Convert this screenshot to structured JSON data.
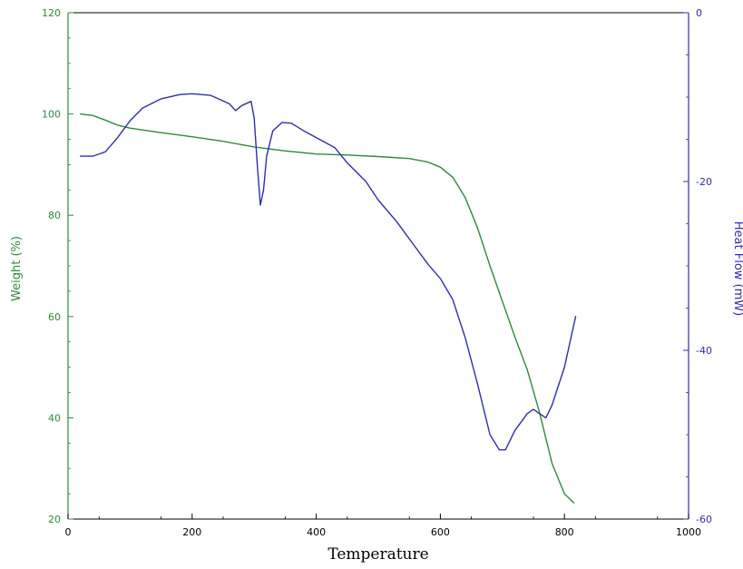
{
  "chart_data": {
    "type": "line",
    "title": "",
    "xlabel": "Temperature",
    "ylabel_left": "Weight (%)",
    "ylabel_right": "Heat Flow (mW)",
    "xlim": [
      0,
      1000
    ],
    "ylim_left": [
      20,
      120
    ],
    "ylim_right": [
      -60,
      0
    ],
    "x_ticks": [
      "0",
      "200",
      "400",
      "600",
      "800",
      "1000"
    ],
    "y_left_ticks": [
      "20",
      "40",
      "60",
      "80",
      "100",
      "120"
    ],
    "y_right_ticks": [
      "-60",
      "-40",
      "-20",
      "0"
    ],
    "grid": false,
    "legend": "none",
    "series": [
      {
        "axis": "left",
        "color": "#2e8b3a",
        "points": [
          [
            20,
            100
          ],
          [
            40,
            99.7
          ],
          [
            60,
            98.8
          ],
          [
            80,
            97.8
          ],
          [
            100,
            97.2
          ],
          [
            150,
            96.3
          ],
          [
            200,
            95.5
          ],
          [
            250,
            94.6
          ],
          [
            300,
            93.5
          ],
          [
            350,
            92.7
          ],
          [
            400,
            92.1
          ],
          [
            450,
            91.9
          ],
          [
            500,
            91.6
          ],
          [
            550,
            91.2
          ],
          [
            580,
            90.5
          ],
          [
            600,
            89.5
          ],
          [
            620,
            87.5
          ],
          [
            640,
            83.5
          ],
          [
            660,
            77.5
          ],
          [
            680,
            70
          ],
          [
            700,
            63
          ],
          [
            720,
            56
          ],
          [
            740,
            49.5
          ],
          [
            760,
            41
          ],
          [
            780,
            31
          ],
          [
            800,
            25
          ],
          [
            815,
            23.2
          ]
        ]
      },
      {
        "axis": "right",
        "color": "#2e2eb0",
        "points": [
          [
            20,
            -17
          ],
          [
            40,
            -17
          ],
          [
            60,
            -16.5
          ],
          [
            80,
            -14.8
          ],
          [
            100,
            -12.8
          ],
          [
            120,
            -11.3
          ],
          [
            150,
            -10.2
          ],
          [
            180,
            -9.7
          ],
          [
            200,
            -9.6
          ],
          [
            230,
            -9.8
          ],
          [
            260,
            -10.8
          ],
          [
            270,
            -11.6
          ],
          [
            280,
            -11
          ],
          [
            295,
            -10.5
          ],
          [
            300,
            -12.5
          ],
          [
            305,
            -18
          ],
          [
            310,
            -22.8
          ],
          [
            315,
            -21
          ],
          [
            320,
            -17
          ],
          [
            330,
            -14
          ],
          [
            345,
            -13
          ],
          [
            360,
            -13.1
          ],
          [
            380,
            -14
          ],
          [
            400,
            -14.8
          ],
          [
            430,
            -16
          ],
          [
            450,
            -17.8
          ],
          [
            480,
            -20
          ],
          [
            500,
            -22.2
          ],
          [
            530,
            -24.8
          ],
          [
            560,
            -27.8
          ],
          [
            580,
            -29.8
          ],
          [
            600,
            -31.5
          ],
          [
            620,
            -34
          ],
          [
            640,
            -38.5
          ],
          [
            660,
            -44
          ],
          [
            680,
            -50
          ],
          [
            695,
            -51.8
          ],
          [
            705,
            -51.8
          ],
          [
            720,
            -49.5
          ],
          [
            740,
            -47.5
          ],
          [
            750,
            -47
          ],
          [
            760,
            -47.5
          ],
          [
            770,
            -48
          ],
          [
            780,
            -46.5
          ],
          [
            800,
            -42
          ],
          [
            818,
            -36
          ]
        ]
      }
    ]
  },
  "colors": {
    "left_axis": "#2e8b3a",
    "right_axis": "#2e2eb0",
    "frame": "#000000"
  }
}
